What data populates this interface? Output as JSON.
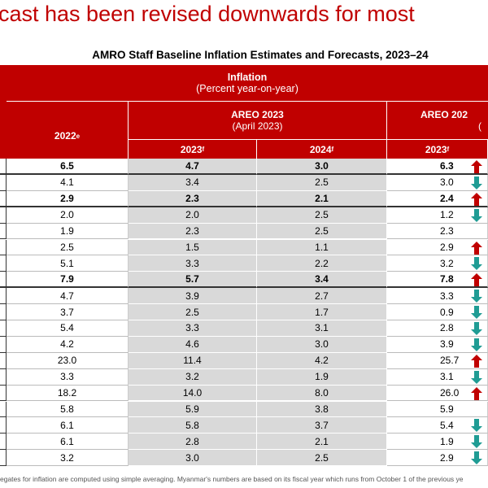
{
  "header": {
    "title": "cast has been revised downwards for most",
    "subtitle": "AMRO Staff Baseline Inflation Estimates and Forecasts, 2023–24"
  },
  "table": {
    "group_header": {
      "title": "Inflation",
      "unit": "(Percent year-on-year)"
    },
    "col_2022": {
      "text": "2022",
      "sup": "e"
    },
    "areo_april": {
      "title": "AREO 2023",
      "sub": "(April 2023)"
    },
    "areo_new": {
      "title": "AREO 202",
      "sub": "("
    },
    "sub_columns": [
      {
        "text": "2023",
        "sup": "f"
      },
      {
        "text": "2024",
        "sup": "f"
      },
      {
        "text": "2023",
        "sup": "f"
      }
    ],
    "rows": [
      {
        "cells": [
          "6.5",
          "4.7",
          "3.0",
          "6.3"
        ],
        "arrow": "up",
        "bold": true
      },
      {
        "cells": [
          "4.1",
          "3.4",
          "2.5",
          "3.0"
        ],
        "arrow": "down",
        "bold": false
      },
      {
        "cells": [
          "2.9",
          "2.3",
          "2.1",
          "2.4"
        ],
        "arrow": "up",
        "bold": true
      },
      {
        "cells": [
          "2.0",
          "2.0",
          "2.5",
          "1.2"
        ],
        "arrow": "down",
        "bold": false
      },
      {
        "cells": [
          "1.9",
          "2.3",
          "2.5",
          "2.3"
        ],
        "arrow": null,
        "bold": false
      },
      {
        "cells": [
          "2.5",
          "1.5",
          "1.1",
          "2.9"
        ],
        "arrow": "up",
        "bold": false
      },
      {
        "cells": [
          "5.1",
          "3.3",
          "2.2",
          "3.2"
        ],
        "arrow": "down",
        "bold": false
      },
      {
        "cells": [
          "7.9",
          "5.7",
          "3.4",
          "7.8"
        ],
        "arrow": "up",
        "bold": true
      },
      {
        "cells": [
          "4.7",
          "3.9",
          "2.7",
          "3.3"
        ],
        "arrow": "down",
        "bold": false
      },
      {
        "cells": [
          "3.7",
          "2.5",
          "1.7",
          "0.9"
        ],
        "arrow": "down",
        "bold": false
      },
      {
        "cells": [
          "5.4",
          "3.3",
          "3.1",
          "2.8"
        ],
        "arrow": "down",
        "bold": false
      },
      {
        "cells": [
          "4.2",
          "4.6",
          "3.0",
          "3.9"
        ],
        "arrow": "down",
        "bold": false
      },
      {
        "cells": [
          "23.0",
          "11.4",
          "4.2",
          "25.7"
        ],
        "arrow": "up",
        "bold": false
      },
      {
        "cells": [
          "3.3",
          "3.2",
          "1.9",
          "3.1"
        ],
        "arrow": "down",
        "bold": false
      },
      {
        "cells": [
          "18.2",
          "14.0",
          "8.0",
          "26.0"
        ],
        "arrow": "up",
        "bold": false
      },
      {
        "cells": [
          "5.8",
          "5.9",
          "3.8",
          "5.9"
        ],
        "arrow": null,
        "bold": false
      },
      {
        "cells": [
          "6.1",
          "5.8",
          "3.7",
          "5.4"
        ],
        "arrow": "down",
        "bold": false
      },
      {
        "cells": [
          "6.1",
          "2.8",
          "2.1",
          "1.9"
        ],
        "arrow": "down",
        "bold": false
      },
      {
        "cells": [
          "3.2",
          "3.0",
          "2.5",
          "2.9"
        ],
        "arrow": "down",
        "bold": false
      }
    ]
  },
  "footnote": "egates for inflation are computed using simple averaging. Myanmar's numbers are based on its fiscal year which runs from October 1 of the previous ye"
}
